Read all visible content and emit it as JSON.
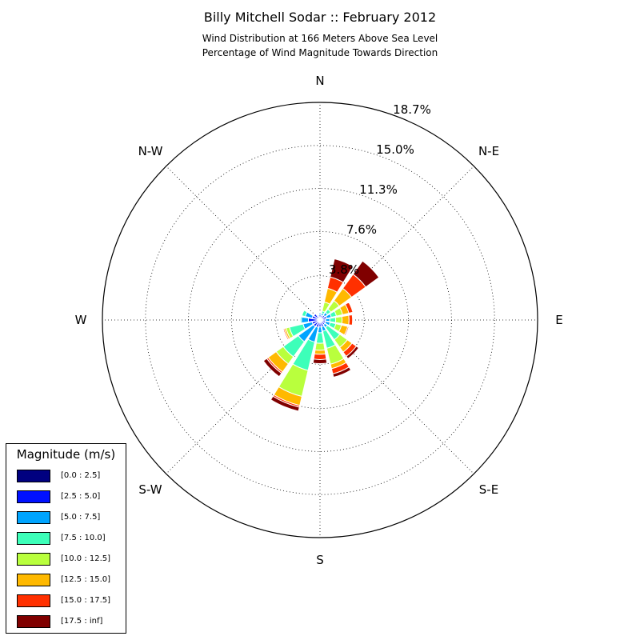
{
  "title": "Billy Mitchell Sodar :: February 2012",
  "subtitle_line1": "Wind Distribution at 166 Meters Above Sea Level",
  "subtitle_line2": "Percentage of Wind Magnitude Towards Direction",
  "legend": {
    "title": "Magnitude (m/s)",
    "items": [
      {
        "label": "[0.0 : 2.5]",
        "color": "#000080"
      },
      {
        "label": "[2.5 : 5.0]",
        "color": "#0010ff"
      },
      {
        "label": "[5.0 : 7.5]",
        "color": "#00a4ff"
      },
      {
        "label": "[7.5 : 10.0]",
        "color": "#3dffb9"
      },
      {
        "label": "[10.0 : 12.5]",
        "color": "#b9ff3d"
      },
      {
        "label": "[12.5 : 15.0]",
        "color": "#ffb900"
      },
      {
        "label": "[15.0 : 17.5]",
        "color": "#ff3000"
      },
      {
        "label": "[17.5 : inf]",
        "color": "#800000"
      }
    ]
  },
  "chart_data": {
    "type": "windrose",
    "title": "Billy Mitchell Sodar :: February 2012",
    "direction_labels": [
      "N",
      "N-E",
      "E",
      "S-E",
      "S",
      "S-W",
      "W",
      "N-W"
    ],
    "radial_ticks": [
      "3.8%",
      "7.6%",
      "11.3%",
      "15.0%",
      "18.7%"
    ],
    "radial_tick_values": [
      3.8,
      7.6,
      11.3,
      15.0,
      18.7
    ],
    "rmax": 18.7,
    "sectors": [
      0,
      22.5,
      45,
      67.5,
      90,
      112.5,
      135,
      157.5,
      180,
      202.5,
      225,
      247.5,
      270,
      292.5,
      315,
      337.5
    ],
    "series": [
      {
        "name": "[0.0 : 2.5]",
        "values": [
          0.05,
          0.1,
          0.1,
          0.1,
          0.1,
          0.1,
          0.1,
          0.1,
          0.1,
          0.1,
          0.1,
          0.1,
          0.1,
          0.1,
          0.05,
          0.05
        ]
      },
      {
        "name": "[2.5 : 5.0]",
        "values": [
          0.4,
          0.3,
          0.4,
          0.5,
          0.35,
          0.4,
          0.4,
          0.5,
          0.5,
          0.55,
          0.6,
          0.6,
          0.9,
          0.6,
          0.6,
          0.3
        ]
      },
      {
        "name": "[5.0 : 7.5]",
        "values": [
          0.15,
          0.2,
          0.3,
          0.4,
          0.4,
          0.4,
          0.3,
          0.4,
          0.5,
          1.3,
          1.6,
          0.8,
          0.6,
          0.6,
          0.0,
          0.1
        ]
      },
      {
        "name": "[7.5 : 10.0]",
        "values": [
          0.05,
          0.2,
          0.35,
          0.45,
          0.5,
          0.5,
          1.3,
          1.5,
          0.9,
          2.5,
          1.6,
          1.2,
          0.1,
          0.3,
          0.0,
          0.05
        ]
      },
      {
        "name": "[10.0 : 12.5]",
        "values": [
          0.0,
          0.8,
          0.9,
          0.55,
          0.55,
          0.5,
          0.8,
          1.4,
          0.6,
          2.3,
          0.75,
          0.3,
          0.0,
          0.0,
          0.0,
          0.0
        ]
      },
      {
        "name": "[12.5 : 15.0]",
        "values": [
          0.0,
          1.2,
          1.3,
          0.55,
          0.6,
          0.55,
          0.5,
          0.4,
          0.35,
          0.8,
          0.85,
          0.15,
          0.0,
          0.0,
          0.0,
          0.0
        ]
      },
      {
        "name": "[15.0 : 17.5]",
        "values": [
          0.0,
          1.0,
          1.5,
          0.35,
          0.3,
          0.1,
          0.45,
          0.45,
          0.45,
          0.15,
          0.15,
          0.1,
          0.0,
          0.0,
          0.0,
          0.0
        ]
      },
      {
        "name": "[17.5 : inf]",
        "values": [
          0.0,
          1.6,
          1.4,
          0.0,
          0.0,
          0.05,
          0.25,
          0.3,
          0.35,
          0.35,
          0.35,
          0.05,
          0.0,
          0.0,
          0.0,
          0.0
        ]
      }
    ],
    "grid": true,
    "legend_position": "bottom-left"
  }
}
